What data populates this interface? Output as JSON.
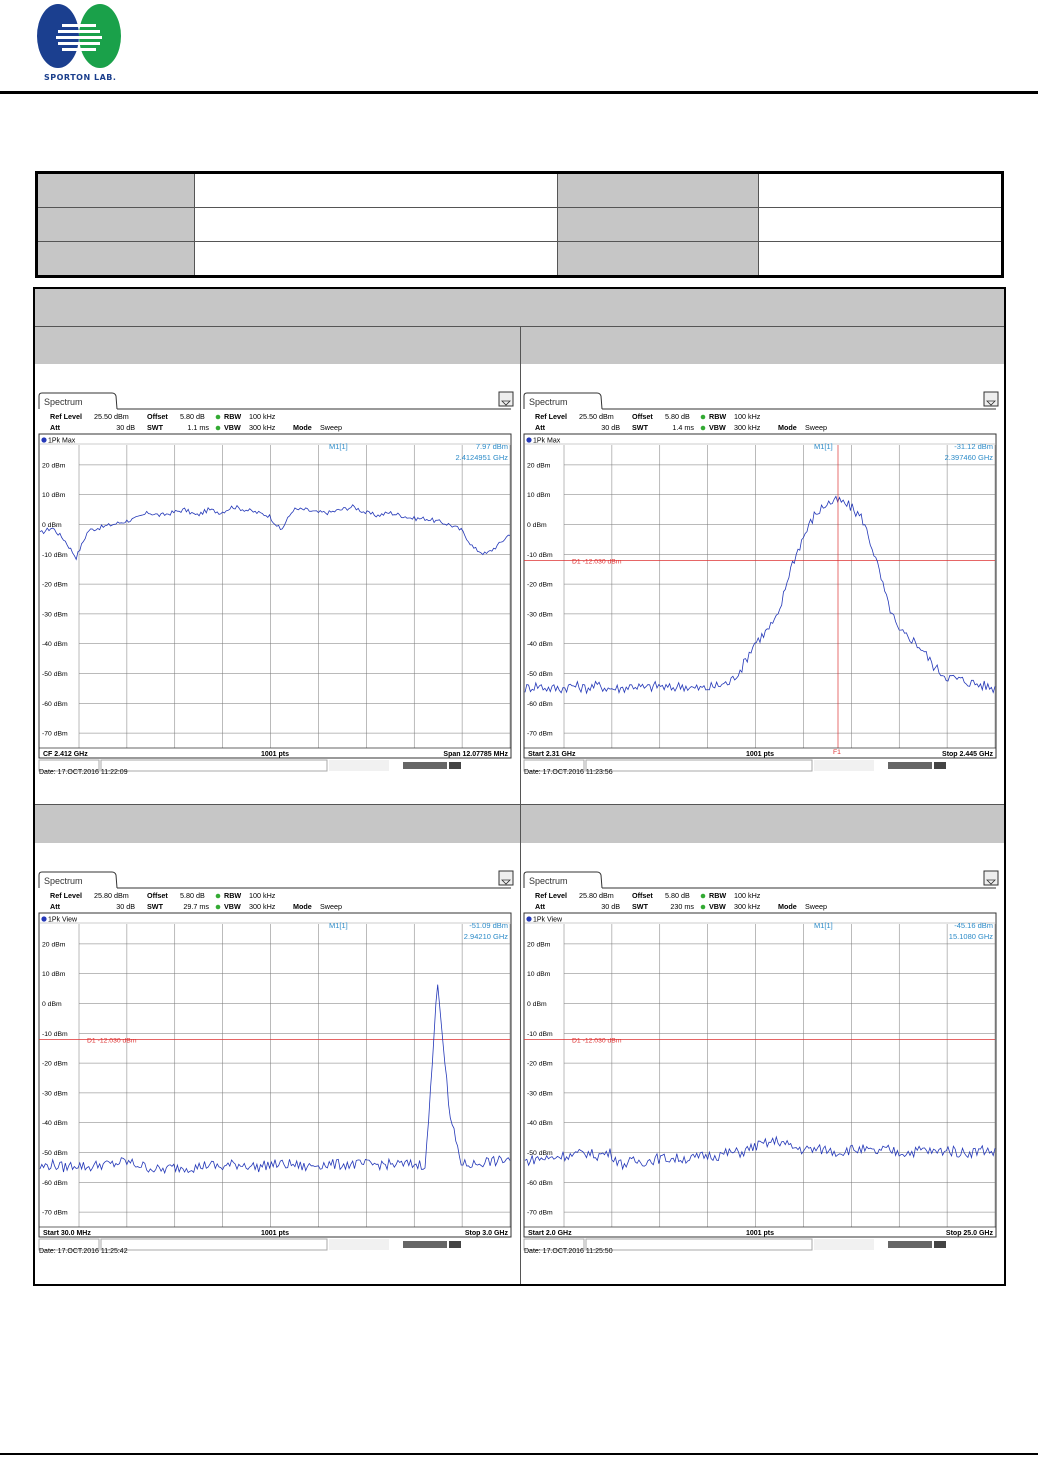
{
  "logo": {
    "text": "SPORTON LAB."
  },
  "plots": [
    {
      "tab": "Spectrum",
      "ref_level_label": "Ref Level",
      "ref_level": "25.50 dBm",
      "offset_label": "Offset",
      "offset": "5.80 dB",
      "rbw_label": "RBW",
      "rbw": "100 kHz",
      "att_label": "Att",
      "att": "30 dB",
      "swt_label": "SWT",
      "swt": "1.1 ms",
      "vbw_label": "VBW",
      "vbw": "300 kHz",
      "mode_label": "Mode",
      "mode": "Sweep",
      "trace_label": "1Pk Max",
      "marker_name": "M1[1]",
      "marker_level": "7.97 dBm",
      "marker_freq": "2.4124951 GHz",
      "bottom_left": "CF 2.412 GHz",
      "bottom_mid": "1001 pts",
      "bottom_right": "Span 12.07785 MHz",
      "date": "Date: 17.OCT.2016  11:22:09",
      "ylabels": [
        "20 dBm",
        "10 dBm",
        "0 dBm",
        "-10 dBm",
        "-20 dBm",
        "-30 dBm",
        "-40 dBm",
        "-50 dBm",
        "-60 dBm",
        "-70 dBm"
      ],
      "chart_data": {
        "type": "line",
        "ylim": [
          -75,
          25
        ],
        "ylabel": "dBm",
        "x_range": "CF 2.412 GHz, Span 12.07785 MHz",
        "trace_dbm": [
          -3,
          -1,
          -5,
          -11,
          -2,
          -1,
          0,
          1,
          2,
          4,
          3,
          4,
          5,
          3,
          5,
          4,
          6,
          5,
          4,
          3,
          -2,
          5,
          5,
          4,
          4,
          5,
          6,
          4,
          3,
          4,
          3,
          2,
          2,
          1,
          0,
          -2,
          -8,
          -10,
          -7,
          -3
        ]
      }
    },
    {
      "tab": "Spectrum",
      "ref_level_label": "Ref Level",
      "ref_level": "25.50 dBm",
      "offset_label": "Offset",
      "offset": "5.80 dB",
      "rbw_label": "RBW",
      "rbw": "100 kHz",
      "att_label": "Att",
      "att": "30 dB",
      "swt_label": "SWT",
      "swt": "1.4 ms",
      "vbw_label": "VBW",
      "vbw": "300 kHz",
      "mode_label": "Mode",
      "mode": "Sweep",
      "trace_label": "1Pk Max",
      "marker_name": "M1[1]",
      "marker_level": "-31.12 dBm",
      "marker_freq": "2.397460 GHz",
      "d1_label": "D1  -12.030 dBm",
      "f1_label": "F1",
      "bottom_left": "Start 2.31 GHz",
      "bottom_mid": "1001 pts",
      "bottom_right": "Stop 2.445 GHz",
      "date": "Date: 17.OCT.2016  11:23:56",
      "ylabels": [
        "20 dBm",
        "10 dBm",
        "0 dBm",
        "-10 dBm",
        "-20 dBm",
        "-30 dBm",
        "-40 dBm",
        "-50 dBm",
        "-60 dBm",
        "-70 dBm"
      ],
      "chart_data": {
        "type": "line",
        "ylim": [
          -75,
          25
        ],
        "ylabel": "dBm",
        "x_range": "Start 2.31 GHz, Stop 2.445 GHz",
        "trace_dbm": [
          -55,
          -54,
          -55,
          -55,
          -54,
          -55,
          -54,
          -55,
          -55,
          -54,
          -55,
          -54,
          -55,
          -54,
          -55,
          -55,
          -54,
          -53,
          -48,
          -40,
          -36,
          -31,
          -15,
          -5,
          3,
          7,
          8,
          6,
          2,
          -10,
          -25,
          -36,
          -38,
          -42,
          -48,
          -51,
          -52,
          -53,
          -54,
          -55
        ]
      }
    },
    {
      "tab": "Spectrum",
      "ref_level_label": "Ref Level",
      "ref_level": "25.80 dBm",
      "offset_label": "Offset",
      "offset": "5.80 dB",
      "rbw_label": "RBW",
      "rbw": "100 kHz",
      "att_label": "Att",
      "att": "30 dB",
      "swt_label": "SWT",
      "swt": "29.7 ms",
      "vbw_label": "VBW",
      "vbw": "300 kHz",
      "mode_label": "Mode",
      "mode": "Sweep",
      "trace_label": "1Pk View",
      "marker_name": "M1[1]",
      "marker_level": "-51.09 dBm",
      "marker_freq": "2.94210 GHz",
      "d1_label": "D1  -12.030 dBm",
      "bottom_left": "Start 30.0 MHz",
      "bottom_mid": "1001 pts",
      "bottom_right": "Stop 3.0 GHz",
      "date": "Date: 17.OCT.2016  11:25:42",
      "ylabels": [
        "20 dBm",
        "10 dBm",
        "0 dBm",
        "-10 dBm",
        "-20 dBm",
        "-30 dBm",
        "-40 dBm",
        "-50 dBm",
        "-60 dBm",
        "-70 dBm"
      ],
      "chart_data": {
        "type": "line",
        "ylim": [
          -75,
          25
        ],
        "ylabel": "dBm",
        "x_range": "Start 30.0 MHz, Stop 3.0 GHz",
        "trace_dbm": [
          -55,
          -54,
          -55,
          -54,
          -55,
          -54,
          -54,
          -53,
          -54,
          -55,
          -56,
          -55,
          -55,
          -55,
          -54,
          -55,
          -54,
          -54,
          -55,
          -54,
          -54,
          -54,
          -55,
          -54,
          -54,
          -54,
          -54,
          -54,
          -54,
          -54,
          -54,
          -54,
          -54,
          8,
          -38,
          -54,
          -54,
          -53,
          -53,
          -52
        ]
      }
    },
    {
      "tab": "Spectrum",
      "ref_level_label": "Ref Level",
      "ref_level": "25.80 dBm",
      "offset_label": "Offset",
      "offset": "5.80 dB",
      "rbw_label": "RBW",
      "rbw": "100 kHz",
      "att_label": "Att",
      "att": "30 dB",
      "swt_label": "SWT",
      "swt": "230 ms",
      "vbw_label": "VBW",
      "vbw": "300 kHz",
      "mode_label": "Mode",
      "mode": "Sweep",
      "trace_label": "1Pk View",
      "marker_name": "M1[1]",
      "marker_level": "-45.16 dBm",
      "marker_freq": "15.1080 GHz",
      "d1_label": "D1  -12.030 dBm",
      "bottom_left": "Start 2.0 GHz",
      "bottom_mid": "1001 pts",
      "bottom_right": "Stop 25.0 GHz",
      "date": "Date: 17.OCT.2016  11:25:50",
      "ylabels": [
        "20 dBm",
        "10 dBm",
        "0 dBm",
        "-10 dBm",
        "-20 dBm",
        "-30 dBm",
        "-40 dBm",
        "-50 dBm",
        "-60 dBm",
        "-70 dBm"
      ],
      "chart_data": {
        "type": "line",
        "ylim": [
          -75,
          25
        ],
        "ylabel": "dBm",
        "x_range": "Start 2.0 GHz, Stop 25.0 GHz",
        "trace_dbm": [
          -53,
          -52,
          -52,
          -51,
          -51,
          -50,
          -51,
          -50,
          -54,
          -53,
          -53,
          -52,
          -52,
          -52,
          -52,
          -51,
          -51,
          -50,
          -50,
          -48,
          -47,
          -46,
          -48,
          -49,
          -49,
          -49,
          -50,
          -49,
          -49,
          -50,
          -49,
          -50,
          -50,
          -49,
          -50,
          -49,
          -50,
          -50,
          -49,
          -50
        ]
      }
    }
  ]
}
